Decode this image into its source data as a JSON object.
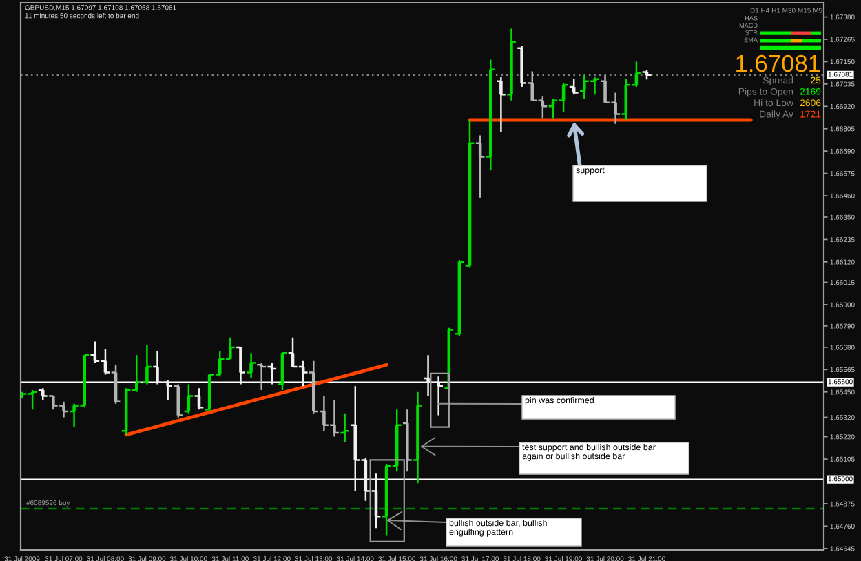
{
  "chart_data": {
    "type": "candlestick",
    "title": "GBPUSD,M15 1.67097 1.67108 1.67058 1.67081",
    "subtitle": "11 minutes 50 seconds left to bar end",
    "x": [
      "2009-07-31T06:00",
      "2009-07-31T06:15",
      "2009-07-31T06:30",
      "2009-07-31T06:45",
      "2009-07-31T07:00",
      "2009-07-31T07:15",
      "2009-07-31T07:30",
      "2009-07-31T07:45",
      "2009-07-31T08:00",
      "2009-07-31T08:15",
      "2009-07-31T08:30",
      "2009-07-31T08:45",
      "2009-07-31T09:00",
      "2009-07-31T09:15",
      "2009-07-31T09:30",
      "2009-07-31T09:45",
      "2009-07-31T10:00",
      "2009-07-31T10:15",
      "2009-07-31T10:30",
      "2009-07-31T10:45",
      "2009-07-31T11:00",
      "2009-07-31T11:15",
      "2009-07-31T11:30",
      "2009-07-31T11:45",
      "2009-07-31T12:00",
      "2009-07-31T12:15",
      "2009-07-31T12:30",
      "2009-07-31T12:45",
      "2009-07-31T13:00",
      "2009-07-31T13:15",
      "2009-07-31T13:30",
      "2009-07-31T13:45",
      "2009-07-31T14:00",
      "2009-07-31T14:15",
      "2009-07-31T14:30",
      "2009-07-31T14:45",
      "2009-07-31T15:00",
      "2009-07-31T15:15",
      "2009-07-31T15:30",
      "2009-07-31T15:45",
      "2009-07-31T16:00",
      "2009-07-31T16:15",
      "2009-07-31T16:30",
      "2009-07-31T16:45",
      "2009-07-31T17:00",
      "2009-07-31T17:15",
      "2009-07-31T17:30",
      "2009-07-31T17:45",
      "2009-07-31T18:00",
      "2009-07-31T18:15",
      "2009-07-31T18:30",
      "2009-07-31T18:45",
      "2009-07-31T19:00",
      "2009-07-31T19:15",
      "2009-07-31T19:30",
      "2009-07-31T19:45",
      "2009-07-31T20:00",
      "2009-07-31T20:15",
      "2009-07-31T20:30",
      "2009-07-31T20:45",
      "2009-07-31T21:00"
    ],
    "ohlc": [
      [
        1.6543,
        1.6545,
        1.6542,
        1.6544
      ],
      [
        1.6544,
        1.6546,
        1.6536,
        1.6545
      ],
      [
        1.6546,
        1.6547,
        1.6541,
        1.6543
      ],
      [
        1.6543,
        1.6543,
        1.6536,
        1.6538
      ],
      [
        1.6538,
        1.654,
        1.6532,
        1.6535
      ],
      [
        1.6535,
        1.6539,
        1.6527,
        1.6538
      ],
      [
        1.6538,
        1.6564,
        1.6537,
        1.6564
      ],
      [
        1.6564,
        1.6571,
        1.656,
        1.6561
      ],
      [
        1.6561,
        1.6567,
        1.6554,
        1.6555
      ],
      [
        1.6555,
        1.6559,
        1.6539,
        1.654
      ],
      [
        1.6525,
        1.6547,
        1.6523,
        1.6546
      ],
      [
        1.6546,
        1.6564,
        1.6545,
        1.655
      ],
      [
        1.655,
        1.6569,
        1.6549,
        1.6558
      ],
      [
        1.6558,
        1.6566,
        1.6549,
        1.655
      ],
      [
        1.655,
        1.6551,
        1.6541,
        1.6548
      ],
      [
        1.6548,
        1.6549,
        1.6532,
        1.6533
      ],
      [
        1.6535,
        1.6549,
        1.6534,
        1.6543
      ],
      [
        1.6543,
        1.6547,
        1.6536,
        1.6537
      ],
      [
        1.6536,
        1.6554,
        1.6535,
        1.6554
      ],
      [
        1.6554,
        1.6566,
        1.6553,
        1.6562
      ],
      [
        1.6562,
        1.6573,
        1.6562,
        1.6568
      ],
      [
        1.6568,
        1.6568,
        1.6549,
        1.6555
      ],
      [
        1.6555,
        1.6565,
        1.6552,
        1.656
      ],
      [
        1.6559,
        1.656,
        1.6546,
        1.6558
      ],
      [
        1.6558,
        1.656,
        1.6549,
        1.6557
      ],
      [
        1.6549,
        1.6565,
        1.6546,
        1.6565
      ],
      [
        1.6565,
        1.6573,
        1.6558,
        1.6558
      ],
      [
        1.6558,
        1.6561,
        1.6548,
        1.6555
      ],
      [
        1.6555,
        1.6561,
        1.6534,
        1.6535
      ],
      [
        1.6535,
        1.6543,
        1.6525,
        1.6528
      ],
      [
        1.6528,
        1.6541,
        1.6522,
        1.6524
      ],
      [
        1.6524,
        1.6534,
        1.6519,
        1.6525
      ],
      [
        1.6528,
        1.6548,
        1.6494,
        1.651
      ],
      [
        1.651,
        1.6511,
        1.6489,
        1.6494
      ],
      [
        1.6494,
        1.6503,
        1.6475,
        1.6481
      ],
      [
        1.6481,
        1.6508,
        1.6471,
        1.6507
      ],
      [
        1.6507,
        1.6536,
        1.6504,
        1.6528
      ],
      [
        1.6529,
        1.6536,
        1.6504,
        1.651
      ],
      [
        1.651,
        1.6545,
        1.6498,
        1.6538
      ],
      [
        1.6552,
        1.6564,
        1.6543,
        1.655
      ],
      [
        1.655,
        1.6553,
        1.6533,
        1.6548
      ],
      [
        1.6547,
        1.6578,
        1.6547,
        1.6577
      ],
      [
        1.6575,
        1.6613,
        1.6574,
        1.6612
      ],
      [
        1.661,
        1.6685,
        1.6609,
        1.6673
      ],
      [
        1.6673,
        1.6677,
        1.6645,
        1.6666
      ],
      [
        1.6666,
        1.6716,
        1.6659,
        1.6711
      ],
      [
        1.6705,
        1.6707,
        1.6679,
        1.6698
      ],
      [
        1.6698,
        1.6732,
        1.6695,
        1.6725
      ],
      [
        1.6722,
        1.6723,
        1.6702,
        1.6704
      ],
      [
        1.6704,
        1.671,
        1.6695,
        1.6695
      ],
      [
        1.6695,
        1.6697,
        1.6686,
        1.6692
      ],
      [
        1.6692,
        1.6696,
        1.6686,
        1.6695
      ],
      [
        1.6695,
        1.6704,
        1.6689,
        1.6703
      ],
      [
        1.6702,
        1.6706,
        1.6698,
        1.6699
      ],
      [
        1.67,
        1.6708,
        1.6696,
        1.6705
      ],
      [
        1.6705,
        1.6707,
        1.6698,
        1.6706
      ],
      [
        1.6705,
        1.6708,
        1.6694,
        1.6694
      ],
      [
        1.6694,
        1.6699,
        1.6683,
        1.6688
      ],
      [
        1.6688,
        1.6706,
        1.6685,
        1.6703
      ],
      [
        1.6703,
        1.6715,
        1.6702,
        1.6709
      ],
      [
        1.67097,
        1.67108,
        1.67058,
        1.67081
      ]
    ],
    "colors": [
      "#00dd00",
      "#00dd00",
      "#f0f0f0",
      "#b4b4b4",
      "#b4b4b4",
      "#00dd00",
      "#00dd00",
      "#f0f0f0",
      "#f0f0f0",
      "#b4b4b4",
      "#00dd00",
      "#00dd00",
      "#00dd00",
      "#f0f0f0",
      "#f0f0f0",
      "#b4b4b4",
      "#00dd00",
      "#f0f0f0",
      "#00dd00",
      "#00dd00",
      "#00dd00",
      "#f0f0f0",
      "#00dd00",
      "#b4b4b4",
      "#f0f0f0",
      "#00dd00",
      "#f0f0f0",
      "#f0f0f0",
      "#b4b4b4",
      "#b4b4b4",
      "#b4b4b4",
      "#00dd00",
      "#f0f0f0",
      "#f0f0f0",
      "#f0f0f0",
      "#00dd00",
      "#00dd00",
      "#b4b4b4",
      "#00dd00",
      "#f0f0f0",
      "#f0f0f0",
      "#00dd00",
      "#00dd00",
      "#00dd00",
      "#b4b4b4",
      "#00dd00",
      "#f0f0f0",
      "#00dd00",
      "#f0f0f0",
      "#b4b4b4",
      "#b4b4b4",
      "#00dd00",
      "#00dd00",
      "#f0f0f0",
      "#00dd00",
      "#00dd00",
      "#b4b4b4",
      "#b4b4b4",
      "#00dd00",
      "#00dd00",
      "#f0f0f0"
    ],
    "series": [
      {
        "type": "line",
        "x": [
          "2009-07-31T08:30",
          "2009-07-31T14:45"
        ],
        "values": [
          1.6523,
          1.6559
        ],
        "color": "#ff4500"
      },
      {
        "type": "line",
        "x": [
          "2009-07-31T16:45",
          "2009-07-31T23:30"
        ],
        "values": [
          1.6685,
          1.6685
        ],
        "color": "#ff4500"
      }
    ],
    "xlim": [
      "2009-07-31T05:58",
      "2009-08-01T01:15"
    ],
    "ylim": [
      1.64637,
      1.67453
    ],
    "xticks": [
      {
        "value": "2009-07-31T06:00",
        "label": "31 Jul 2009"
      },
      {
        "value": "2009-07-31T07:00",
        "label": "31 Jul 07:00"
      },
      {
        "value": "2009-07-31T08:00",
        "label": "31 Jul 08:00"
      },
      {
        "value": "2009-07-31T09:00",
        "label": "31 Jul 09:00"
      },
      {
        "value": "2009-07-31T10:00",
        "label": "31 Jul 10:00"
      },
      {
        "value": "2009-07-31T11:00",
        "label": "31 Jul 11:00"
      },
      {
        "value": "2009-07-31T12:00",
        "label": "31 Jul 12:00"
      },
      {
        "value": "2009-07-31T13:00",
        "label": "31 Jul 13:00"
      },
      {
        "value": "2009-07-31T14:00",
        "label": "31 Jul 14:00"
      },
      {
        "value": "2009-07-31T15:00",
        "label": "31 Jul 15:00"
      },
      {
        "value": "2009-07-31T16:00",
        "label": "31 Jul 16:00"
      },
      {
        "value": "2009-07-31T17:00",
        "label": "31 Jul 17:00"
      },
      {
        "value": "2009-07-31T18:00",
        "label": "31 Jul 18:00"
      },
      {
        "value": "2009-07-31T19:00",
        "label": "31 Jul 19:00"
      },
      {
        "value": "2009-07-31T20:00",
        "label": "31 Jul 20:00"
      },
      {
        "value": "2009-07-31T21:00",
        "label": "31 Jul 21:00"
      }
    ],
    "yticks": [
      {
        "value": 1.6738,
        "label": "1.67380"
      },
      {
        "value": 1.67265,
        "label": "1.67265"
      },
      {
        "value": 1.6715,
        "label": "1.67150"
      },
      {
        "value": 1.67035,
        "label": "1.67035"
      },
      {
        "value": 1.6692,
        "label": "1.66920"
      },
      {
        "value": 1.66805,
        "label": "1.66805"
      },
      {
        "value": 1.6669,
        "label": "1.66690"
      },
      {
        "value": 1.66575,
        "label": "1.66575"
      },
      {
        "value": 1.6646,
        "label": "1.66460"
      },
      {
        "value": 1.6635,
        "label": "1.66350"
      },
      {
        "value": 1.66235,
        "label": "1.66235"
      },
      {
        "value": 1.6612,
        "label": "1.66120"
      },
      {
        "value": 1.66015,
        "label": "1.66015"
      },
      {
        "value": 1.659,
        "label": "1.65900"
      },
      {
        "value": 1.6579,
        "label": "1.65790"
      },
      {
        "value": 1.6568,
        "label": "1.65680"
      },
      {
        "value": 1.65565,
        "label": "1.65565"
      },
      {
        "value": 1.6545,
        "label": "1.65450"
      },
      {
        "value": 1.6532,
        "label": "1.65320"
      },
      {
        "value": 1.6522,
        "label": "1.65220"
      },
      {
        "value": 1.65105,
        "label": "1.65105"
      },
      {
        "value": 1.64875,
        "label": "1.64875"
      },
      {
        "value": 1.6476,
        "label": "1.64760"
      },
      {
        "value": 1.64645,
        "label": "1.64645"
      }
    ],
    "ref_lines": [
      {
        "axis": "y",
        "value": 1.67081,
        "label": "1.67081",
        "color": "#808080",
        "line_style": "dotted"
      },
      {
        "axis": "y",
        "value": 1.655,
        "label": "1.65500",
        "color": "#ffffff"
      },
      {
        "axis": "y",
        "value": 1.65,
        "label": "1.65000",
        "color": "#ffffff"
      },
      {
        "axis": "y",
        "value": 1.6485,
        "label": "#6089526 buy",
        "color": "#008000",
        "line_style": "dashed"
      }
    ],
    "annotations": [
      {
        "text": "support",
        "x": "2009-07-31T19:15",
        "y": 1.6684
      },
      {
        "text": "pin was confirmed",
        "x": "2009-07-31T16:00",
        "y": 1.6539
      },
      {
        "text": "test support and bullish outside bar\nagain or bullish outside bar",
        "x": "2009-07-31T15:30",
        "y": 1.6517
      },
      {
        "text": "bullish outside bar, bullish\nengulfing pattern",
        "x": "2009-07-31T14:45",
        "y": 1.6479
      },
      "D1 H4 H1 M30 M15 M5",
      "HAS",
      "MACD",
      "STR",
      "EMA",
      "1.67081",
      "Spread",
      "25",
      "Pips to Open",
      "2169",
      "Hi to Low",
      "2606",
      "Daily Av",
      "1721"
    ]
  }
}
